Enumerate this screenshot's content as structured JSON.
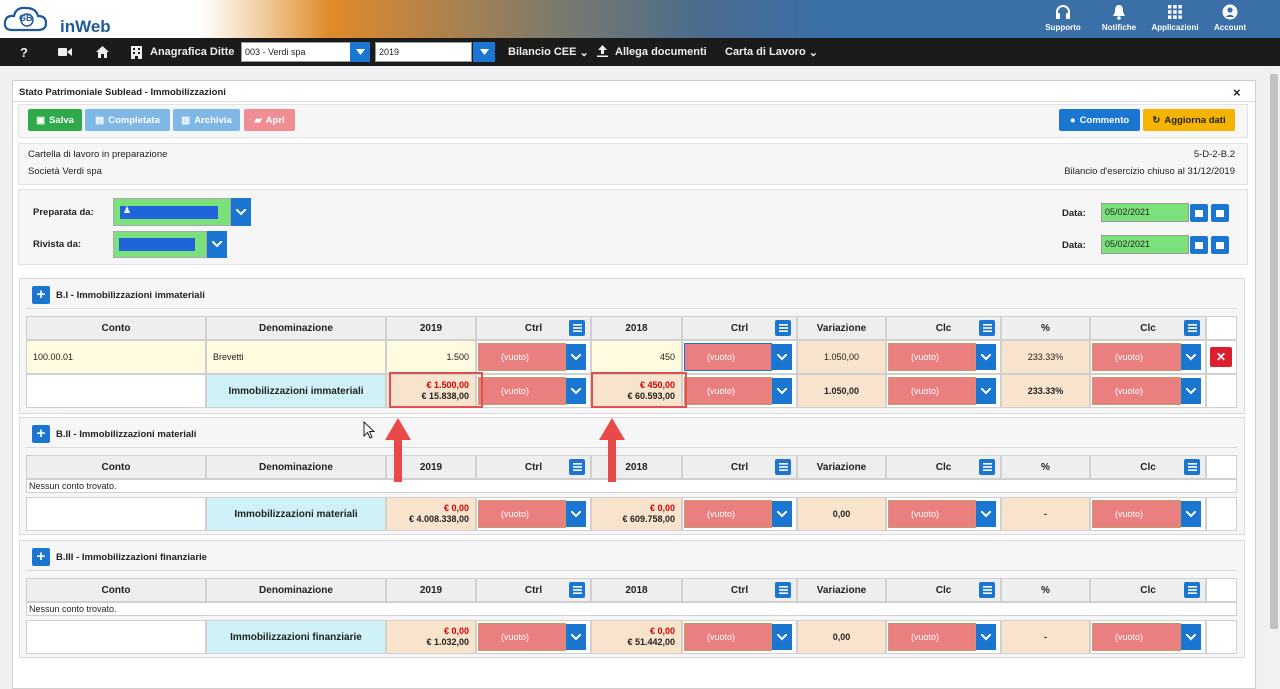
{
  "app": {
    "brand": "inWeb",
    "logo_letters": "GB"
  },
  "topbar": {
    "icons": [
      {
        "name": "headset-icon",
        "label": "Supporto"
      },
      {
        "name": "bell-icon",
        "label": "Notifiche"
      },
      {
        "name": "grid-icon",
        "label": "Applicazioni"
      },
      {
        "name": "user-icon",
        "label": "Account"
      }
    ]
  },
  "navbar": {
    "help": "?",
    "anagrafica": "Anagrafica Ditte",
    "company": "003 - Verdi spa",
    "year": "2019",
    "bilancio": "Bilancio CEE",
    "allega": "Allega documenti",
    "carta": "Carta di Lavoro"
  },
  "panel": {
    "title": "Stato Patrimoniale Sublead - Immobilizzazioni",
    "close": "×",
    "buttons": {
      "salva": "Salva",
      "completata": "Completata",
      "archivia": "Archivia",
      "apri": "Apri",
      "commento": "Commento",
      "aggiorna": "Aggiorna dati"
    },
    "status": "Cartella di lavoro in preparazione",
    "code": "5-D-2-B.2",
    "company": "Società Verdi spa",
    "bilancio": "Bilancio d'esercizio chiuso al 31/12/2019",
    "preparata_label": "Preparata da:",
    "rivista_label": "Rivista da:",
    "data_label": "Data:",
    "data1": "05/02/2021",
    "data2": "05/02/2021"
  },
  "columns": {
    "conto": "Conto",
    "denominazione": "Denominazione",
    "y2019": "2019",
    "ctrl": "Ctrl",
    "y2018": "2018",
    "variazione": "Variazione",
    "clc": "Clc",
    "pct": "%"
  },
  "empty_value": "(vuoto)",
  "no_account": "Nessun conto trovato.",
  "sections": [
    {
      "title": "B.I - Immobilizzazioni immateriali",
      "row": {
        "conto": "100.00.01",
        "denominazione": "Brevetti",
        "v2019": "1.500",
        "v2018": "450",
        "variazione": "1.050,00",
        "pct": "233.33%"
      },
      "total": {
        "label": "Immobilizzazioni immateriali",
        "a2019": "€ 1.500,00",
        "b2019": "€ 15.838,00",
        "a2018": "€ 450,00",
        "b2018": "€ 60.593,00",
        "variazione": "1.050,00",
        "pct": "233.33%"
      }
    },
    {
      "title": "B.II - Immobilizzazioni materiali",
      "total": {
        "label": "Immobilizzazioni materiali",
        "a2019": "€ 0,00",
        "b2019": "€ 4.008.338,00",
        "a2018": "€ 0,00",
        "b2018": "€ 609.758,00",
        "variazione": "0,00",
        "pct": "-"
      }
    },
    {
      "title": "B.III - Immobilizzazioni finanziarie",
      "total": {
        "label": "Immobilizzazioni finanziarie",
        "a2019": "€ 0,00",
        "b2019": "€ 1.032,00",
        "a2018": "€ 0,00",
        "b2018": "€ 51.442,00",
        "variazione": "0,00",
        "pct": "-"
      }
    }
  ],
  "colors": {
    "blue": "#1b76d1",
    "green": "#2eaa4a",
    "red_dropdown": "#ea7f7f",
    "orange": "#f5b400",
    "cream": "#fffbe1",
    "peach": "#f8e4cc",
    "cyan": "#cff2f8",
    "highlight": "#e05050"
  }
}
